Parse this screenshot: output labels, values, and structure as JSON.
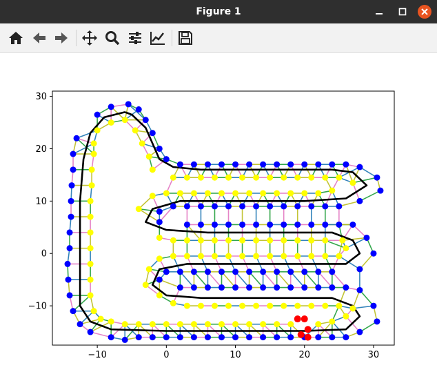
{
  "window": {
    "title": "Figure 1"
  },
  "toolbar": {
    "items": [
      {
        "icon": "home-icon"
      },
      {
        "icon": "back-arrow-icon"
      },
      {
        "icon": "forward-arrow-icon"
      },
      {
        "icon": "pan-move-icon"
      },
      {
        "icon": "zoom-magnifier-icon"
      },
      {
        "icon": "configure-subplots-icon"
      },
      {
        "icon": "edit-axis-curve-icon"
      },
      {
        "icon": "save-floppy-icon"
      }
    ]
  },
  "chart_data": {
    "type": "scatter",
    "title": "",
    "xlabel": "",
    "ylabel": "",
    "xlim": [
      -16.5,
      33
    ],
    "ylim": [
      -17.5,
      31
    ],
    "xticks": [
      -10,
      0,
      10,
      20,
      30
    ],
    "yticks": [
      -10,
      0,
      10,
      20,
      30
    ],
    "tick_labels_x": [
      "−10",
      "0",
      "10",
      "20",
      "30"
    ],
    "tick_labels_y": [
      "−10",
      "0",
      "10",
      "20",
      "30"
    ],
    "grid": false,
    "legend": "none",
    "colors": {
      "centerline": "#000000",
      "outer_points": "#0000ff",
      "inner_points": "#ffff00",
      "highlight_points": "#ff0000",
      "edges": [
        "#1f9e3a",
        "#e377c2",
        "#bcbd22",
        "#1f77b4"
      ]
    },
    "centerline": [
      [
        -6,
        27
      ],
      [
        -9,
        26
      ],
      [
        -11,
        23
      ],
      [
        -12,
        18
      ],
      [
        -12.5,
        10
      ],
      [
        -12.5,
        0
      ],
      [
        -12.5,
        -10
      ],
      [
        -11,
        -13
      ],
      [
        -8,
        -14.5
      ],
      [
        0,
        -14.8
      ],
      [
        10,
        -14.8
      ],
      [
        20,
        -14.8
      ],
      [
        26,
        -14.5
      ],
      [
        28,
        -12
      ],
      [
        27,
        -10
      ],
      [
        24,
        -8.5
      ],
      [
        15,
        -8.5
      ],
      [
        5,
        -8.5
      ],
      [
        0,
        -8
      ],
      [
        -2,
        -6
      ],
      [
        -1,
        -3
      ],
      [
        3,
        -2
      ],
      [
        10,
        -2
      ],
      [
        20,
        -2
      ],
      [
        26,
        -2
      ],
      [
        28,
        0
      ],
      [
        27,
        2.5
      ],
      [
        24,
        4
      ],
      [
        15,
        4
      ],
      [
        6,
        4
      ],
      [
        0,
        4.5
      ],
      [
        -3,
        6
      ],
      [
        -2,
        8.5
      ],
      [
        2,
        10
      ],
      [
        10,
        10
      ],
      [
        20,
        10
      ],
      [
        26,
        10.5
      ],
      [
        29,
        13
      ],
      [
        27,
        15.5
      ],
      [
        24,
        16
      ],
      [
        15,
        16
      ],
      [
        5,
        16
      ],
      [
        1,
        16.5
      ],
      [
        -1,
        18
      ],
      [
        -2,
        21
      ],
      [
        -3,
        24
      ],
      [
        -5,
        26.5
      ],
      [
        -6,
        27
      ]
    ],
    "outer_points": [
      [
        -5.5,
        28.5
      ],
      [
        -8,
        28
      ],
      [
        -10,
        26.5
      ],
      [
        -13,
        22
      ],
      [
        -13.5,
        19
      ],
      [
        -13.5,
        16
      ],
      [
        -13.7,
        13
      ],
      [
        -13.8,
        10
      ],
      [
        -13.8,
        7
      ],
      [
        -14,
        4
      ],
      [
        -14,
        1
      ],
      [
        -14.3,
        -2
      ],
      [
        -14.2,
        -5
      ],
      [
        -14,
        -8
      ],
      [
        -13.5,
        -11
      ],
      [
        -12.5,
        -13.5
      ],
      [
        -11,
        -15
      ],
      [
        -8,
        -16
      ],
      [
        -6,
        -16.5
      ],
      [
        -4,
        -16
      ],
      [
        -2,
        -16
      ],
      [
        0,
        -16
      ],
      [
        2,
        -16
      ],
      [
        4,
        -16
      ],
      [
        6,
        -16
      ],
      [
        8,
        -16
      ],
      [
        10,
        -16
      ],
      [
        12,
        -16
      ],
      [
        14,
        -16
      ],
      [
        16,
        -16
      ],
      [
        18,
        -16
      ],
      [
        20,
        -16
      ],
      [
        22,
        -16
      ],
      [
        24,
        -16
      ],
      [
        26,
        -16
      ],
      [
        28,
        -15
      ],
      [
        30.5,
        -13
      ],
      [
        30,
        -10
      ],
      [
        28,
        -7
      ],
      [
        26,
        -6.5
      ],
      [
        24,
        -6.5
      ],
      [
        22,
        -6.5
      ],
      [
        20,
        -6.5
      ],
      [
        18,
        -6.5
      ],
      [
        16,
        -6.5
      ],
      [
        14,
        -6.5
      ],
      [
        12,
        -6.5
      ],
      [
        10,
        -6.5
      ],
      [
        8,
        -6.5
      ],
      [
        6,
        -6.5
      ],
      [
        4,
        -6.5
      ],
      [
        2,
        -6.5
      ],
      [
        -1,
        -5
      ],
      [
        0,
        -3.5
      ],
      [
        2,
        -3.5
      ],
      [
        4,
        -3.5
      ],
      [
        6,
        -3.5
      ],
      [
        8,
        -3.5
      ],
      [
        10,
        -3.5
      ],
      [
        12,
        -3.5
      ],
      [
        14,
        -3.5
      ],
      [
        16,
        -3.5
      ],
      [
        18,
        -3.5
      ],
      [
        20,
        -3.5
      ],
      [
        22,
        -3.5
      ],
      [
        24,
        -3.5
      ],
      [
        28,
        -3
      ],
      [
        30,
        0
      ],
      [
        29,
        3
      ],
      [
        27,
        5.5
      ],
      [
        25,
        5.5
      ],
      [
        23,
        5.5
      ],
      [
        21,
        5.5
      ],
      [
        19,
        5.5
      ],
      [
        17,
        5.5
      ],
      [
        15,
        5.5
      ],
      [
        13,
        5.5
      ],
      [
        11,
        5.5
      ],
      [
        9,
        5.5
      ],
      [
        7,
        5.5
      ],
      [
        5,
        5.5
      ],
      [
        3,
        5.5
      ],
      [
        -1,
        6
      ],
      [
        -1,
        8
      ],
      [
        1,
        9
      ],
      [
        3,
        9
      ],
      [
        5,
        9
      ],
      [
        7,
        9
      ],
      [
        9,
        9
      ],
      [
        11,
        9
      ],
      [
        13,
        9
      ],
      [
        15,
        9
      ],
      [
        17,
        9
      ],
      [
        19,
        9
      ],
      [
        21,
        9
      ],
      [
        23,
        9
      ],
      [
        25,
        9
      ],
      [
        28,
        10
      ],
      [
        31,
        12
      ],
      [
        30.5,
        14.5
      ],
      [
        28,
        16.5
      ],
      [
        26,
        17
      ],
      [
        24,
        17
      ],
      [
        22,
        17
      ],
      [
        20,
        17
      ],
      [
        18,
        17
      ],
      [
        16,
        17
      ],
      [
        14,
        17
      ],
      [
        12,
        17
      ],
      [
        10,
        17
      ],
      [
        8,
        17
      ],
      [
        6,
        17
      ],
      [
        4,
        17
      ],
      [
        2,
        17
      ],
      [
        0,
        18
      ],
      [
        -1,
        20
      ],
      [
        -2,
        23
      ],
      [
        -3,
        25.5
      ],
      [
        -4,
        27.5
      ]
    ],
    "inner_points": [
      [
        -6,
        25.5
      ],
      [
        -8,
        25
      ],
      [
        -10,
        23.5
      ],
      [
        -10.5,
        21
      ],
      [
        -10.5,
        19
      ],
      [
        -10.8,
        16
      ],
      [
        -10.8,
        13
      ],
      [
        -11,
        10
      ],
      [
        -11,
        7
      ],
      [
        -11,
        4
      ],
      [
        -11,
        1
      ],
      [
        -11,
        -2
      ],
      [
        -11,
        -5
      ],
      [
        -11,
        -8
      ],
      [
        -10.5,
        -11
      ],
      [
        -9.5,
        -12.5
      ],
      [
        -8,
        -13
      ],
      [
        -6,
        -13.5
      ],
      [
        -4,
        -13.5
      ],
      [
        -2,
        -13.5
      ],
      [
        0,
        -13.5
      ],
      [
        2,
        -13.5
      ],
      [
        4,
        -13.5
      ],
      [
        6,
        -13.5
      ],
      [
        8,
        -13.5
      ],
      [
        10,
        -13.5
      ],
      [
        12,
        -13.5
      ],
      [
        14,
        -13.5
      ],
      [
        16,
        -13.5
      ],
      [
        18,
        -13.5
      ],
      [
        22,
        -13.5
      ],
      [
        24,
        -13
      ],
      [
        26,
        -12
      ],
      [
        27,
        -10.5
      ],
      [
        25,
        -10
      ],
      [
        23,
        -10
      ],
      [
        21,
        -10
      ],
      [
        19,
        -10
      ],
      [
        17,
        -10
      ],
      [
        15,
        -10
      ],
      [
        13,
        -10
      ],
      [
        11,
        -10
      ],
      [
        9,
        -10
      ],
      [
        7,
        -10
      ],
      [
        5,
        -10
      ],
      [
        3,
        -10
      ],
      [
        1,
        -9.5
      ],
      [
        -1,
        -8
      ],
      [
        -3,
        -6
      ],
      [
        -2.5,
        -3
      ],
      [
        -1,
        -1
      ],
      [
        1,
        -0.5
      ],
      [
        3,
        -0.5
      ],
      [
        5,
        -0.5
      ],
      [
        7,
        -0.5
      ],
      [
        9,
        -0.5
      ],
      [
        11,
        -0.5
      ],
      [
        13,
        -0.5
      ],
      [
        15,
        -0.5
      ],
      [
        17,
        -0.5
      ],
      [
        19,
        -0.5
      ],
      [
        21,
        -0.5
      ],
      [
        23,
        -0.5
      ],
      [
        25,
        -0.5
      ],
      [
        26,
        1
      ],
      [
        25.5,
        2.5
      ],
      [
        23,
        2.5
      ],
      [
        21,
        2.5
      ],
      [
        19,
        2.5
      ],
      [
        17,
        2.5
      ],
      [
        15,
        2.5
      ],
      [
        13,
        2.5
      ],
      [
        11,
        2.5
      ],
      [
        9,
        2.5
      ],
      [
        7,
        2.5
      ],
      [
        5,
        2.5
      ],
      [
        3,
        2.5
      ],
      [
        1,
        2.5
      ],
      [
        -1,
        3
      ],
      [
        -4,
        8.5
      ],
      [
        -2,
        11
      ],
      [
        0,
        11.5
      ],
      [
        2,
        11.5
      ],
      [
        4,
        11.5
      ],
      [
        6,
        11.5
      ],
      [
        8,
        11.5
      ],
      [
        10,
        11.5
      ],
      [
        12,
        11.5
      ],
      [
        14,
        11.5
      ],
      [
        16,
        11.5
      ],
      [
        18,
        11.5
      ],
      [
        20,
        11.5
      ],
      [
        22,
        11.5
      ],
      [
        24,
        12
      ],
      [
        27,
        13.5
      ],
      [
        25,
        14.5
      ],
      [
        23,
        14.5
      ],
      [
        21,
        14.5
      ],
      [
        19,
        14.5
      ],
      [
        17,
        14.5
      ],
      [
        15,
        14.5
      ],
      [
        13,
        14.5
      ],
      [
        11,
        14.5
      ],
      [
        9,
        14.5
      ],
      [
        7,
        14.5
      ],
      [
        5,
        14.5
      ],
      [
        3,
        14.5
      ],
      [
        1,
        14.5
      ],
      [
        -2,
        16
      ],
      [
        -2.5,
        18.5
      ],
      [
        -3.5,
        21
      ],
      [
        -4.5,
        23.5
      ]
    ],
    "highlight_points": [
      [
        20,
        -12.5
      ],
      [
        19.5,
        -15.5
      ],
      [
        20.5,
        -14.5
      ],
      [
        19,
        -12.5
      ],
      [
        20.5,
        -16
      ]
    ]
  }
}
